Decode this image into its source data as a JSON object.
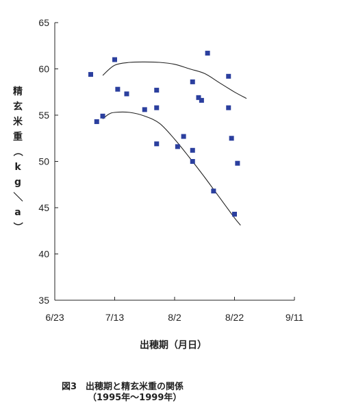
{
  "chart_data": {
    "type": "scatter",
    "xlabel": "出穂期（月日）",
    "ylabel_chars": [
      "精",
      "玄",
      "米",
      "重",
      "（",
      "k",
      "g",
      "／",
      "a",
      "）"
    ],
    "caption_line1": "図3　出穂期と精玄米重の関係",
    "caption_line2": "（1995年～1999年）",
    "xlim": [
      "6/23",
      "9/11"
    ],
    "x_ticks": [
      "6/23",
      "7/13",
      "8/2",
      "8/22",
      "9/11"
    ],
    "ylim": [
      35,
      65
    ],
    "y_ticks": [
      35,
      40,
      45,
      50,
      55,
      60,
      65
    ],
    "grid": false,
    "marker_color": "#2b3f9e",
    "line_color": "#222222",
    "points": [
      {
        "x": "7/5",
        "y": 59.4
      },
      {
        "x": "7/7",
        "y": 54.3
      },
      {
        "x": "7/9",
        "y": 54.9
      },
      {
        "x": "7/13",
        "y": 61.0
      },
      {
        "x": "7/14",
        "y": 57.8
      },
      {
        "x": "7/17",
        "y": 57.3
      },
      {
        "x": "7/23",
        "y": 55.6
      },
      {
        "x": "7/27",
        "y": 57.7
      },
      {
        "x": "7/27",
        "y": 55.8
      },
      {
        "x": "7/27",
        "y": 51.9
      },
      {
        "x": "8/3",
        "y": 51.6
      },
      {
        "x": "8/5",
        "y": 52.7
      },
      {
        "x": "8/8",
        "y": 58.6
      },
      {
        "x": "8/8",
        "y": 51.2
      },
      {
        "x": "8/8",
        "y": 50.0
      },
      {
        "x": "8/10",
        "y": 56.9
      },
      {
        "x": "8/11",
        "y": 56.6
      },
      {
        "x": "8/13",
        "y": 61.7
      },
      {
        "x": "8/15",
        "y": 46.8
      },
      {
        "x": "8/20",
        "y": 59.2
      },
      {
        "x": "8/20",
        "y": 55.8
      },
      {
        "x": "8/21",
        "y": 52.5
      },
      {
        "x": "8/22",
        "y": 44.3
      },
      {
        "x": "8/23",
        "y": 49.8
      }
    ],
    "curves": [
      {
        "points": [
          [
            "7/9",
            59.3
          ],
          [
            "7/13",
            60.4
          ],
          [
            "7/18",
            60.7
          ],
          [
            "7/23",
            60.75
          ],
          [
            "7/28",
            60.7
          ],
          [
            "8/2",
            60.5
          ],
          [
            "8/7",
            60.0
          ],
          [
            "8/12",
            59.5
          ],
          [
            "8/17",
            58.5
          ],
          [
            "8/22",
            57.5
          ],
          [
            "8/26",
            56.8
          ]
        ]
      },
      {
        "points": [
          [
            "7/9",
            54.6
          ],
          [
            "7/11",
            55.1
          ],
          [
            "7/13",
            55.3
          ],
          [
            "7/18",
            55.3
          ],
          [
            "7/23",
            54.9
          ],
          [
            "7/28",
            54.1
          ],
          [
            "8/2",
            52.4
          ],
          [
            "8/7",
            50.4
          ],
          [
            "8/12",
            48.3
          ],
          [
            "8/17",
            46.1
          ],
          [
            "8/22",
            43.9
          ],
          [
            "8/24",
            43.1
          ]
        ]
      }
    ]
  }
}
